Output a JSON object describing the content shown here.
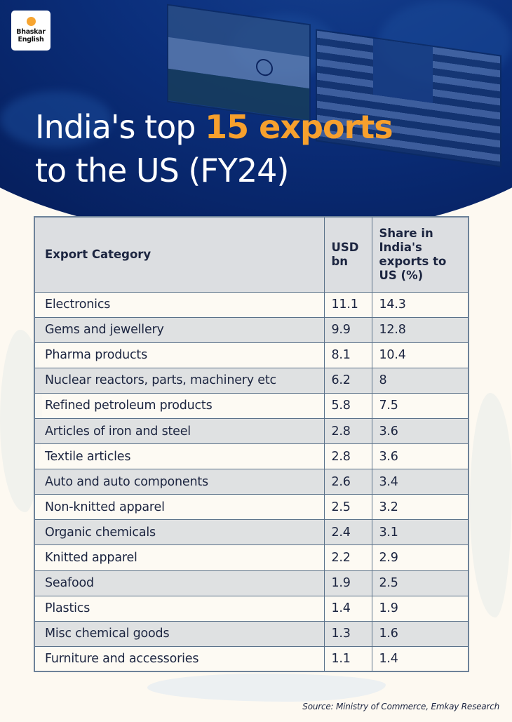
{
  "brand": {
    "logo_line1": "Bhaskar",
    "logo_line2": "English",
    "dot_color": "#f7a531"
  },
  "header": {
    "title_part1": "India's top ",
    "title_highlight": "15 exports",
    "title_part2": "to the US (FY24)",
    "highlight_color": "#f7a02d",
    "background_color": "#0a2c78"
  },
  "table": {
    "headers": [
      "Export Category",
      "USD bn",
      "Share in India's exports to US (%)"
    ],
    "rows": [
      {
        "category": "Electronics",
        "usd_bn": "11.1",
        "share": "14.3"
      },
      {
        "category": "Gems and jewellery",
        "usd_bn": "9.9",
        "share": "12.8"
      },
      {
        "category": "Pharma products",
        "usd_bn": "8.1",
        "share": "10.4"
      },
      {
        "category": "Nuclear reactors, parts, machinery etc",
        "usd_bn": "6.2",
        "share": "8"
      },
      {
        "category": "Refined petroleum products",
        "usd_bn": "5.8",
        "share": "7.5"
      },
      {
        "category": "Articles of iron and steel",
        "usd_bn": "2.8",
        "share": "3.6"
      },
      {
        "category": "Textile articles",
        "usd_bn": "2.8",
        "share": "3.6"
      },
      {
        "category": "Auto and auto components",
        "usd_bn": "2.6",
        "share": "3.4"
      },
      {
        "category": "Non-knitted apparel",
        "usd_bn": "2.5",
        "share": "3.2"
      },
      {
        "category": "Organic chemicals",
        "usd_bn": "2.4",
        "share": "3.1"
      },
      {
        "category": "Knitted apparel",
        "usd_bn": "2.2",
        "share": "2.9"
      },
      {
        "category": "Seafood",
        "usd_bn": "1.9",
        "share": "2.5"
      },
      {
        "category": "Plastics",
        "usd_bn": "1.4",
        "share": "1.9"
      },
      {
        "category": "Misc chemical goods",
        "usd_bn": "1.3",
        "share": "1.6"
      },
      {
        "category": "Furniture and accessories",
        "usd_bn": "1.1",
        "share": "1.4"
      }
    ]
  },
  "footer": {
    "source": "Source: Ministry of Commerce, Emkay Research"
  }
}
